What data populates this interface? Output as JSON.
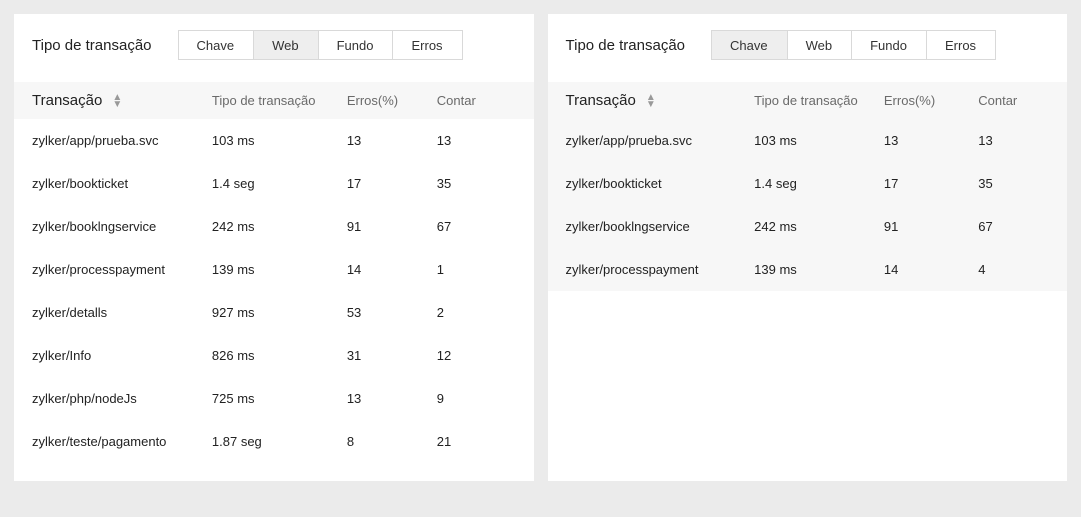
{
  "left": {
    "header": {
      "title": "Tipo de transação",
      "tabs": [
        {
          "label": "Chave",
          "active": false
        },
        {
          "label": "Web",
          "active": true
        },
        {
          "label": "Fundo",
          "active": false
        },
        {
          "label": "Erros",
          "active": false
        }
      ]
    },
    "table": {
      "columns": {
        "transaction": "Transação",
        "type": "Tipo de transação",
        "errors": "Erros(%)",
        "count": "Contar"
      },
      "rows": [
        {
          "transaction": "zylker/app/prueba.svc",
          "type": "103 ms",
          "errors": "13",
          "count": "13"
        },
        {
          "transaction": "zylker/bookticket",
          "type": "1.4 seg",
          "errors": "17",
          "count": "35"
        },
        {
          "transaction": "zylker/booklngservice",
          "type": "242 ms",
          "errors": "91",
          "count": "67"
        },
        {
          "transaction": "zylker/processpayment",
          "type": "139 ms",
          "errors": "14",
          "count": "1"
        },
        {
          "transaction": "zylker/detalls",
          "type": "927 ms",
          "errors": "53",
          "count": "2"
        },
        {
          "transaction": "zylker/Info",
          "type": "826 ms",
          "errors": "31",
          "count": "12"
        },
        {
          "transaction": "zylker/php/nodeJs",
          "type": "725 ms",
          "errors": "13",
          "count": "9"
        },
        {
          "transaction": "zylker/teste/pagamento",
          "type": "1.87 seg",
          "errors": "8",
          "count": "21"
        }
      ]
    }
  },
  "right": {
    "header": {
      "title": "Tipo de transação",
      "tabs": [
        {
          "label": "Chave",
          "active": true
        },
        {
          "label": "Web",
          "active": false
        },
        {
          "label": "Fundo",
          "active": false
        },
        {
          "label": "Erros",
          "active": false
        }
      ]
    },
    "table": {
      "columns": {
        "transaction": "Transação",
        "type": "Tipo de transação",
        "errors": "Erros(%)",
        "count": "Contar"
      },
      "rows": [
        {
          "transaction": "zylker/app/prueba.svc",
          "type": "103 ms",
          "errors": "13",
          "count": "13"
        },
        {
          "transaction": "zylker/bookticket",
          "type": "1.4 seg",
          "errors": "17",
          "count": "35"
        },
        {
          "transaction": "zylker/booklngservice",
          "type": "242 ms",
          "errors": "91",
          "count": "67"
        },
        {
          "transaction": "zylker/processpayment",
          "type": "139 ms",
          "errors": "14",
          "count": "4"
        }
      ]
    }
  }
}
